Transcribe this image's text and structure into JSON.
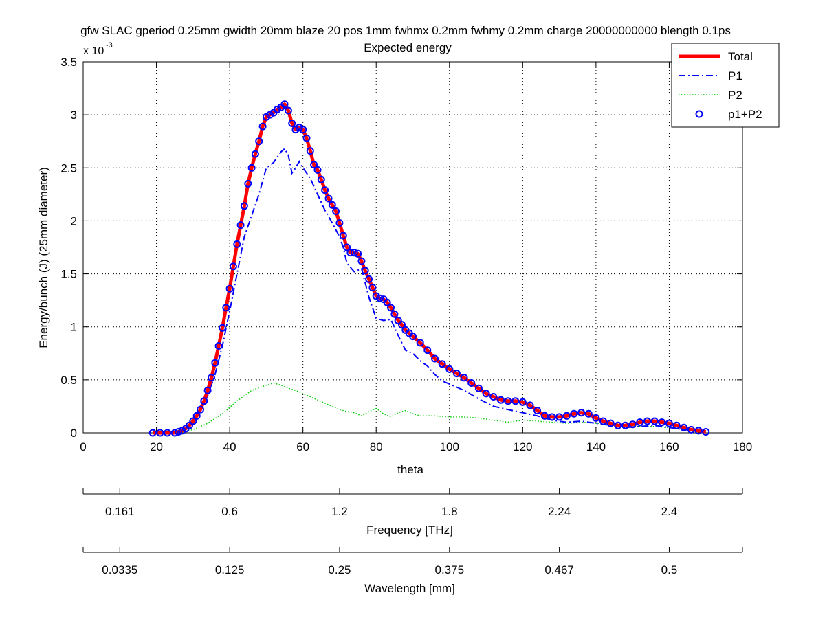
{
  "chart_data": {
    "type": "line",
    "title": "gfw SLAC gperiod 0.25mm gwidth 20mm blaze 20 pos 1mm fwhmx 0.2mm fwhmy 0.2mm charge 20000000000 blength 0.1ps",
    "subtitle": "Expected energy",
    "xlabel": "theta",
    "ylabel": "Energy/bunch (J)  (25mm diameter)",
    "y_multiplier": "x 10",
    "y_multiplier_exp": "-3",
    "xlim": [
      0,
      180
    ],
    "ylim": [
      0,
      0.0035
    ],
    "xticks": [
      0,
      20,
      40,
      60,
      80,
      100,
      120,
      140,
      160,
      180
    ],
    "yticks": [
      0,
      0.0005,
      0.001,
      0.0015,
      0.002,
      0.0025,
      0.003,
      0.0035
    ],
    "ytick_labels": [
      "0",
      "0.5",
      "1",
      "1.5",
      "2",
      "2.5",
      "3",
      "3.5"
    ],
    "grid": true,
    "legend_position": "top-right",
    "series": [
      {
        "name": "Total",
        "style": "solid-thick",
        "color": "#ff0000",
        "x": [
          19,
          21,
          23,
          25,
          26,
          27,
          28,
          29,
          30,
          31,
          32,
          33,
          34,
          35,
          36,
          37,
          38,
          39,
          40,
          41,
          42,
          43,
          44,
          45,
          46,
          47,
          48,
          49,
          50,
          51,
          52,
          53,
          54,
          55,
          56,
          57,
          58,
          59,
          60,
          61,
          62,
          63,
          64,
          65,
          66,
          67,
          68,
          69,
          70,
          71,
          72,
          73,
          74,
          75,
          76,
          77,
          78,
          79,
          80,
          81,
          82,
          83,
          84,
          85,
          86,
          87,
          88,
          89,
          90,
          92,
          94,
          96,
          98,
          100,
          102,
          104,
          106,
          108,
          110,
          112,
          114,
          116,
          118,
          120,
          122,
          124,
          126,
          128,
          130,
          132,
          134,
          136,
          138,
          140,
          142,
          144,
          146,
          148,
          150,
          152,
          154,
          156,
          158,
          160,
          162,
          164,
          166,
          168,
          170
        ],
        "values": [
          0.0,
          0.0,
          0.0,
          0.0,
          1e-05,
          2e-05,
          4e-05,
          7e-05,
          0.00011,
          0.00016,
          0.00022,
          0.0003,
          0.0004,
          0.00052,
          0.00066,
          0.00082,
          0.00099,
          0.00118,
          0.00136,
          0.00157,
          0.00178,
          0.00196,
          0.00214,
          0.00235,
          0.0025,
          0.00263,
          0.00275,
          0.00289,
          0.00298,
          0.003,
          0.00302,
          0.00305,
          0.00307,
          0.0031,
          0.00304,
          0.00292,
          0.00286,
          0.00288,
          0.00286,
          0.00278,
          0.00266,
          0.00253,
          0.00248,
          0.00239,
          0.00229,
          0.00221,
          0.00215,
          0.00209,
          0.00198,
          0.00186,
          0.00175,
          0.0017,
          0.0017,
          0.00169,
          0.00162,
          0.00153,
          0.00145,
          0.00137,
          0.00129,
          0.00127,
          0.00126,
          0.00123,
          0.00118,
          0.00112,
          0.00106,
          0.00102,
          0.00097,
          0.00094,
          0.00091,
          0.00085,
          0.00078,
          0.0007,
          0.00065,
          0.0006,
          0.00056,
          0.00052,
          0.00047,
          0.00042,
          0.00037,
          0.00034,
          0.00031,
          0.0003,
          0.0003,
          0.00029,
          0.00026,
          0.00021,
          0.00016,
          0.00015,
          0.00015,
          0.00016,
          0.00018,
          0.00019,
          0.00018,
          0.00014,
          0.00011,
          9e-05,
          7e-05,
          7e-05,
          8e-05,
          0.0001,
          0.00011,
          0.00011,
          0.0001,
          9e-05,
          7e-05,
          5e-05,
          3e-05,
          2e-05,
          1e-05
        ]
      },
      {
        "name": "P1",
        "style": "dash-dot",
        "color": "#0000ff",
        "x": [
          19,
          25,
          28,
          30,
          32,
          34,
          36,
          38,
          40,
          42,
          44,
          46,
          48,
          50,
          52,
          54,
          55,
          56,
          57,
          58,
          59,
          60,
          62,
          64,
          66,
          68,
          70,
          71,
          72,
          74,
          76,
          78,
          80,
          82,
          84,
          86,
          88,
          90,
          92,
          94,
          96,
          98,
          100,
          104,
          108,
          112,
          116,
          120,
          124,
          128,
          132,
          136,
          140,
          144,
          148,
          152,
          156,
          160,
          164,
          168,
          170
        ],
        "values": [
          0.0,
          0.0,
          3e-05,
          9e-05,
          0.0002,
          0.00035,
          0.00055,
          0.00082,
          0.00115,
          0.0015,
          0.00185,
          0.00205,
          0.00225,
          0.0025,
          0.00255,
          0.00265,
          0.00268,
          0.00262,
          0.00245,
          0.0025,
          0.00256,
          0.0025,
          0.0024,
          0.00225,
          0.0021,
          0.00198,
          0.00185,
          0.00175,
          0.0016,
          0.00152,
          0.00155,
          0.00128,
          0.00108,
          0.00106,
          0.00107,
          0.00092,
          0.00078,
          0.00075,
          0.00068,
          0.00063,
          0.00055,
          0.00049,
          0.00046,
          0.0004,
          0.00032,
          0.00025,
          0.00022,
          0.00019,
          0.00016,
          0.00012,
          0.0001,
          0.00011,
          9e-05,
          7e-05,
          5e-05,
          6e-05,
          7e-05,
          5e-05,
          3e-05,
          2e-05,
          1e-05
        ]
      },
      {
        "name": "P2",
        "style": "dotted",
        "color": "#00cc00",
        "x": [
          19,
          26,
          30,
          34,
          38,
          42,
          46,
          50,
          52,
          54,
          56,
          58,
          60,
          62,
          64,
          66,
          68,
          70,
          72,
          74,
          76,
          78,
          80,
          82,
          84,
          86,
          88,
          90,
          92,
          96,
          100,
          104,
          108,
          112,
          116,
          120,
          124,
          128,
          132,
          136,
          140,
          144,
          148,
          152,
          156,
          160,
          164,
          168,
          170
        ],
        "values": [
          0.0,
          0.0,
          3e-05,
          9e-05,
          0.00018,
          0.0003,
          0.0004,
          0.00045,
          0.00047,
          0.00045,
          0.00042,
          0.0004,
          0.00037,
          0.00034,
          0.00031,
          0.00028,
          0.00025,
          0.00022,
          0.0002,
          0.00019,
          0.00016,
          0.0002,
          0.00023,
          0.00018,
          0.00015,
          0.00019,
          0.00021,
          0.00018,
          0.00016,
          0.00016,
          0.00015,
          0.00015,
          0.00014,
          0.00012,
          0.0001,
          0.00012,
          0.00011,
          0.0001,
          9e-05,
          0.0001,
          9e-05,
          8e-05,
          7e-05,
          6e-05,
          6e-05,
          5e-05,
          4e-05,
          2e-05,
          1e-05
        ]
      },
      {
        "name": "p1+P2",
        "style": "circle-markers",
        "color": "#0000ff"
      }
    ],
    "secondary_axes": [
      {
        "label": "Frequency [THz]",
        "ticks": [
          {
            "theta": 10,
            "label": "0.161"
          },
          {
            "theta": 40,
            "label": "0.6"
          },
          {
            "theta": 70,
            "label": "1.2"
          },
          {
            "theta": 100,
            "label": "1.8"
          },
          {
            "theta": 130,
            "label": "2.24"
          },
          {
            "theta": 160,
            "label": "2.4"
          }
        ]
      },
      {
        "label": "Wavelength [mm]",
        "ticks": [
          {
            "theta": 10,
            "label": "0.0335"
          },
          {
            "theta": 40,
            "label": "0.125"
          },
          {
            "theta": 70,
            "label": "0.25"
          },
          {
            "theta": 100,
            "label": "0.375"
          },
          {
            "theta": 130,
            "label": "0.467"
          },
          {
            "theta": 160,
            "label": "0.5"
          }
        ]
      }
    ]
  }
}
